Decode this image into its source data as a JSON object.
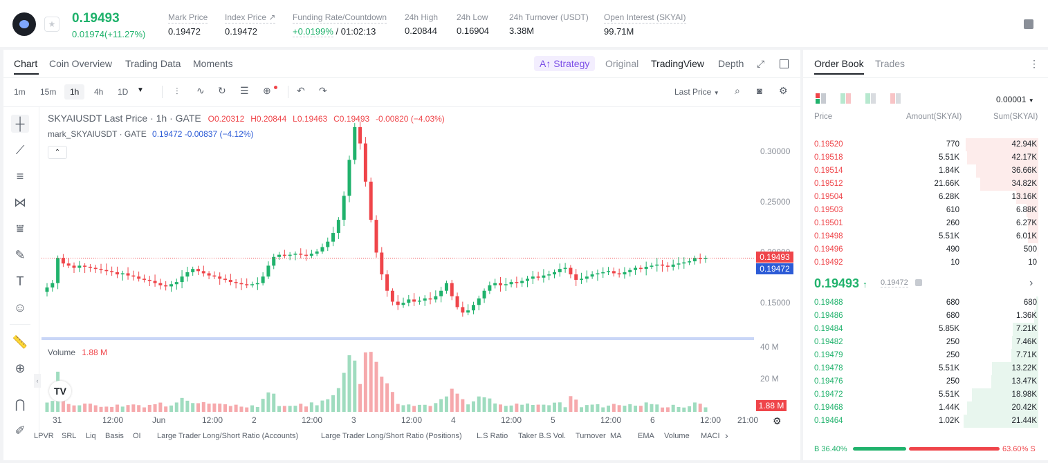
{
  "ticker": {
    "last_price": "0.19493",
    "change": "0.01974(+11.27%)",
    "stats": [
      {
        "label": "Mark Price",
        "value": "0.19472"
      },
      {
        "label": "Index Price ↗",
        "value": "0.19472"
      },
      {
        "label": "Funding Rate/Countdown",
        "value_green": "+0.0199%",
        "value": " / 01:02:13"
      },
      {
        "label": "24h High",
        "value": "0.20844"
      },
      {
        "label": "24h Low",
        "value": "0.16904"
      },
      {
        "label": "24h Turnover (USDT)",
        "value": "3.38M"
      },
      {
        "label": "Open Interest (SKYAI)",
        "value": "99.71M"
      }
    ]
  },
  "chart_tabs": [
    "Chart",
    "Coin Overview",
    "Trading Data",
    "Moments"
  ],
  "view_tabs": {
    "strategy": "Strategy",
    "original": "Original",
    "tradingview": "TradingView",
    "depth": "Depth"
  },
  "timeframes": [
    "1m",
    "15m",
    "1h",
    "4h",
    "1D"
  ],
  "price_type": "Last Price",
  "legend": {
    "title": "SKYAIUSDT Last Price · 1h · GATE",
    "o": "O0.20312",
    "h": "H0.20844",
    "l": "L0.19463",
    "c": "C0.19493",
    "chg": "-0.00820 (−4.03%)",
    "mark_label": "mark_SKYAIUSDT · GATE",
    "mark_val": "0.19472  -0.00837  (−4.12%)"
  },
  "volume_label": "Volume",
  "volume_value": "1.88 M",
  "y_axis": [
    "0.30000",
    "0.25000",
    "0.20000",
    "0.15000"
  ],
  "vol_axis": [
    "40 M",
    "20 M"
  ],
  "price_tags": {
    "last": "0.19493",
    "mark": "0.19472",
    "vol": "1.88 M"
  },
  "x_axis": [
    "31",
    "12:00",
    "Jun",
    "12:00",
    "2",
    "12:00",
    "3",
    "12:00",
    "4",
    "12:00",
    "5",
    "12:00",
    "6",
    "12:00",
    "21:00"
  ],
  "indicators": [
    "LPVR",
    "SRL",
    "Liq",
    "Basis",
    "OI",
    "Large Trader Long/Short Ratio (Accounts)",
    "Large Trader Long/Short Ratio (Positions)",
    "L.S Ratio",
    "Taker B.S Vol.",
    "Turnover",
    "MA",
    "EMA",
    "Volume",
    "MACI"
  ],
  "order_book": {
    "tabs": [
      "Order Book",
      "Trades"
    ],
    "precision": "0.00001",
    "headers": {
      "price": "Price",
      "amount": "Amount(SKYAI)",
      "sum": "Sum(SKYAI)"
    },
    "asks": [
      {
        "price": "0.19520",
        "amount": "770",
        "sum": "42.94K",
        "depth": 0.97
      },
      {
        "price": "0.19518",
        "amount": "5.51K",
        "sum": "42.17K",
        "depth": 0.95
      },
      {
        "price": "0.19514",
        "amount": "1.84K",
        "sum": "36.66K",
        "depth": 0.83
      },
      {
        "price": "0.19512",
        "amount": "21.66K",
        "sum": "34.82K",
        "depth": 0.78
      },
      {
        "price": "0.19504",
        "amount": "6.28K",
        "sum": "13.16K",
        "depth": 0.3
      },
      {
        "price": "0.19503",
        "amount": "610",
        "sum": "6.88K",
        "depth": 0.16
      },
      {
        "price": "0.19501",
        "amount": "260",
        "sum": "6.27K",
        "depth": 0.14
      },
      {
        "price": "0.19498",
        "amount": "5.51K",
        "sum": "6.01K",
        "depth": 0.14
      },
      {
        "price": "0.19496",
        "amount": "490",
        "sum": "500",
        "depth": 0.01
      },
      {
        "price": "0.19492",
        "amount": "10",
        "sum": "10",
        "depth": 0.0
      }
    ],
    "mid_price": "0.19493",
    "mid_mark": "0.19472",
    "bids": [
      {
        "price": "0.19488",
        "amount": "680",
        "sum": "680",
        "depth": 0.03
      },
      {
        "price": "0.19486",
        "amount": "680",
        "sum": "1.36K",
        "depth": 0.06
      },
      {
        "price": "0.19484",
        "amount": "5.85K",
        "sum": "7.21K",
        "depth": 0.34
      },
      {
        "price": "0.19482",
        "amount": "250",
        "sum": "7.46K",
        "depth": 0.35
      },
      {
        "price": "0.19479",
        "amount": "250",
        "sum": "7.71K",
        "depth": 0.36
      },
      {
        "price": "0.19478",
        "amount": "5.51K",
        "sum": "13.22K",
        "depth": 0.62
      },
      {
        "price": "0.19476",
        "amount": "250",
        "sum": "13.47K",
        "depth": 0.63
      },
      {
        "price": "0.19472",
        "amount": "5.51K",
        "sum": "18.98K",
        "depth": 0.89
      },
      {
        "price": "0.19468",
        "amount": "1.44K",
        "sum": "20.42K",
        "depth": 0.95
      },
      {
        "price": "0.19464",
        "amount": "1.02K",
        "sum": "21.44K",
        "depth": 1.0
      }
    ],
    "buy_pct": "B 36.40%",
    "sell_pct": "63.60% S",
    "buy_ratio": 0.364
  },
  "chart_data": {
    "type": "candlestick",
    "ylim": [
      0.13,
      0.32
    ],
    "closes": [
      0.168,
      0.172,
      0.195,
      0.19,
      0.188,
      0.186,
      0.188,
      0.187,
      0.186,
      0.185,
      0.184,
      0.183,
      0.182,
      0.18,
      0.181,
      0.179,
      0.178,
      0.176,
      0.175,
      0.174,
      0.172,
      0.17,
      0.169,
      0.171,
      0.173,
      0.178,
      0.182,
      0.185,
      0.183,
      0.181,
      0.179,
      0.178,
      0.176,
      0.175,
      0.173,
      0.172,
      0.171,
      0.17,
      0.171,
      0.172,
      0.178,
      0.188,
      0.196,
      0.198,
      0.197,
      0.198,
      0.199,
      0.198,
      0.197,
      0.199,
      0.201,
      0.205,
      0.21,
      0.218,
      0.23,
      0.252,
      0.285,
      0.315,
      0.3,
      0.265,
      0.23,
      0.2,
      0.18,
      0.165,
      0.155,
      0.152,
      0.154,
      0.157,
      0.155,
      0.156,
      0.158,
      0.157,
      0.16,
      0.165,
      0.172,
      0.16,
      0.15,
      0.145,
      0.147,
      0.152,
      0.158,
      0.165,
      0.17,
      0.172,
      0.17,
      0.171,
      0.173,
      0.172,
      0.174,
      0.176,
      0.178,
      0.177,
      0.179,
      0.18,
      0.182,
      0.185,
      0.186,
      0.18,
      0.175,
      0.176,
      0.178,
      0.18,
      0.181,
      0.182,
      0.183,
      0.181,
      0.18,
      0.182,
      0.184,
      0.186,
      0.185,
      0.187,
      0.188,
      0.189,
      0.188,
      0.187,
      0.189,
      0.19,
      0.191,
      0.192,
      0.195,
      0.194,
      0.19493
    ],
    "volume_peak": 40
  }
}
